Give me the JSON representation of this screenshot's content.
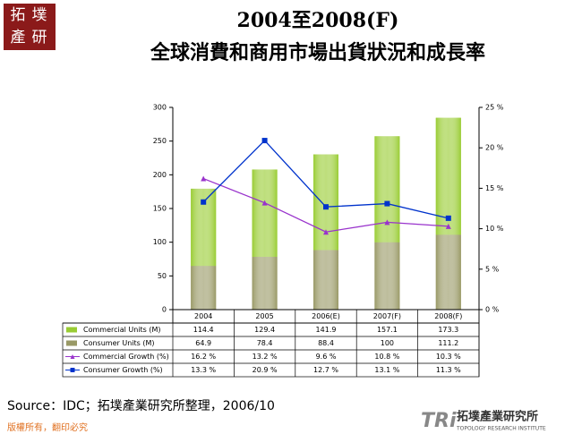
{
  "chart_data": {
    "type": "bar-line",
    "title": "2004至2008(F)",
    "subtitle": "全球消費和商用市場出貨狀況和成長率",
    "categories": [
      "2004",
      "2005",
      "2006(E)",
      "2007(F)",
      "2008(F)"
    ],
    "series": [
      {
        "name": "Commercial  Units (M)",
        "type": "bar",
        "color": "#99cc33",
        "values": [
          114.4,
          129.4,
          141.9,
          157.1,
          173.3
        ]
      },
      {
        "name": "Consumer  Units (M)",
        "type": "bar",
        "color": "#999966",
        "values": [
          64.9,
          78.4,
          88.4,
          100,
          111.2
        ]
      },
      {
        "name": "Commercial Growth (%)",
        "type": "line",
        "axis": "y2",
        "color": "#9933cc",
        "marker": "triangle",
        "values": [
          16.2,
          13.2,
          9.6,
          10.8,
          10.3
        ],
        "value_labels": [
          "16.2 %",
          "13.2 %",
          "9.6 %",
          "10.8 %",
          "10.3 %"
        ]
      },
      {
        "name": "Consumer Growth (%)",
        "type": "line",
        "axis": "y2",
        "color": "#0033cc",
        "marker": "square",
        "values": [
          13.3,
          20.9,
          12.7,
          13.1,
          11.3
        ],
        "value_labels": [
          "13.3 %",
          "20.9 %",
          "12.7 %",
          "13.1 %",
          "11.3 %"
        ]
      }
    ],
    "stack_order": [
      1,
      0
    ],
    "ylim": [
      0,
      300
    ],
    "yticks": [
      0,
      50,
      100,
      150,
      200,
      250,
      300
    ],
    "y2lim": [
      0,
      25
    ],
    "y2ticks": [
      {
        "value": 0,
        "label": "0 %"
      },
      {
        "value": 5,
        "label": "5 %"
      },
      {
        "value": 10,
        "label": "10 %"
      },
      {
        "value": 15,
        "label": "15 %"
      },
      {
        "value": 20,
        "label": "20 %"
      },
      {
        "value": 25,
        "label": "25 %"
      }
    ],
    "data_table": true,
    "source": "Source：IDC；拓墣產業研究所整理，2006/10"
  },
  "logo": {
    "top_left": [
      "拓",
      "墣",
      "產",
      "研"
    ],
    "mark": "TRi",
    "name": "拓墣產業研究所",
    "english": "TOPOLOGY RESEARCH INSTITUTE"
  },
  "footer": "版權所有，翻印必究"
}
